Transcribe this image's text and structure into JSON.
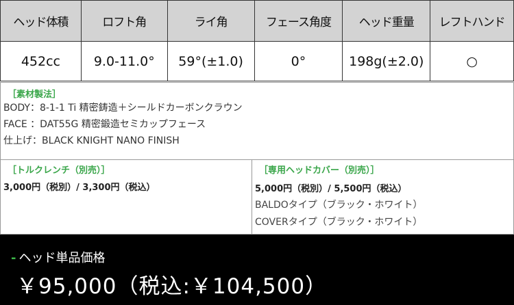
{
  "spec_table": {
    "headers": [
      "ヘッド体積",
      "ロフト角",
      "ライ角",
      "フェース角度",
      "ヘッド重量",
      "レフトハンド"
    ],
    "values": [
      "452cc",
      "9.0-11.0°",
      "59°(±1.0)",
      "0°",
      "198g(±2.0)",
      "○"
    ]
  },
  "materials": {
    "title": "［素材製法］",
    "lines": [
      "BODY：8-1-1 Ti 精密鋳造＋シールドカーボンクラウン",
      "FACE ：DAT55G 精密鍛造セミカップフェース",
      "仕上げ：BLACK KNIGHT NANO FINISH"
    ]
  },
  "torque_wrench": {
    "title": "［トルクレンチ（別売）］",
    "price": "3,000円（税別）/ 3,300円（税込）"
  },
  "head_cover": {
    "title": "［専用ヘッドカバー（別売）］",
    "price": "5,000円（税別）/ 5,500円（税込）",
    "types": [
      "BALDOタイプ（ブラック・ホワイト）",
      "COVERタイプ（ブラック・ホワイト）"
    ]
  },
  "price": {
    "marker": "-",
    "label": "ヘッド単品価格",
    "value": "￥95,000（税込:￥104,500）"
  },
  "colors": {
    "accent": "#3aa64a",
    "header_bg": "#d3d3d3",
    "price_bg": "#000000"
  }
}
